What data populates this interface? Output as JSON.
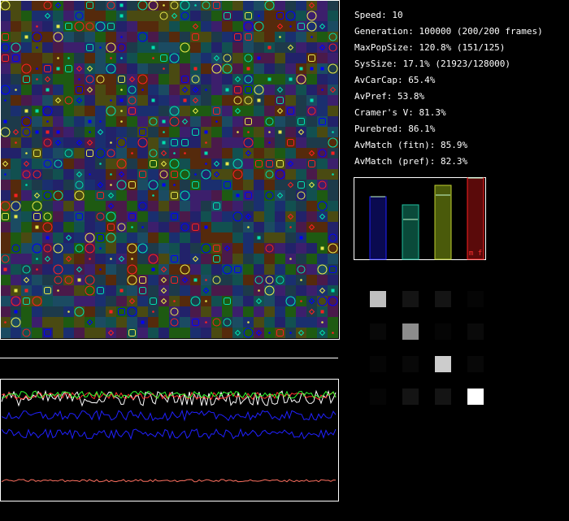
{
  "stats": {
    "speed": "Speed: 10",
    "generation": "Generation: 100000 (200/200 frames)",
    "max_pop_size": "MaxPopSize: 120.8% (151/125)",
    "sys_size": "SysSize: 17.1% (21923/128000)",
    "av_car_cap": "AvCarCap: 65.4%",
    "av_pref": "AvPref: 53.8%",
    "cramers_v": "Cramer's V: 81.3%",
    "purebred": "Purebred: 86.1%",
    "av_match_fitn": "AvMatch (fitn): 85.9%",
    "av_match_pref": "AvMatch (pref): 82.3%"
  },
  "colors": {
    "grid_palette": [
      "#1a2f6f",
      "#22226a",
      "#3c1f6c",
      "#125050",
      "#1b4b62",
      "#1e5a12",
      "#4a4a12",
      "#552a0c",
      "#4a1a4a",
      "#1d3a4a"
    ],
    "types": [
      "#0000ff",
      "#00e0b0",
      "#e8e84a",
      "#ff2020"
    ]
  },
  "bars": {
    "label": "m f",
    "fill_levels": [
      0.77,
      0.67,
      0.91,
      1.0
    ],
    "marker_levels": [
      0.77,
      0.49,
      0.79,
      1.0
    ],
    "fill_colors": [
      "#0a0a50",
      "#0a4a3a",
      "#4a5a0a",
      "#5a0a0a"
    ],
    "edge_colors": [
      "#2020ff",
      "#20c0a0",
      "#c0d030",
      "#ff2020"
    ]
  },
  "matrix": {
    "values": [
      [
        0.75,
        0.08,
        0.08,
        0.02
      ],
      [
        0.03,
        0.55,
        0.02,
        0.04
      ],
      [
        0.02,
        0.03,
        0.8,
        0.03
      ],
      [
        0.02,
        0.08,
        0.08,
        1.0
      ]
    ]
  },
  "series": {
    "colors": [
      "#ffffff",
      "#ff3030",
      "#30ff30",
      "#2020ff",
      "#2020ff",
      "#ff7060"
    ],
    "levels": [
      0.84,
      0.86,
      0.87,
      0.7,
      0.55,
      0.17
    ],
    "noise": [
      0.06,
      0.03,
      0.03,
      0.04,
      0.04,
      0.01
    ]
  }
}
